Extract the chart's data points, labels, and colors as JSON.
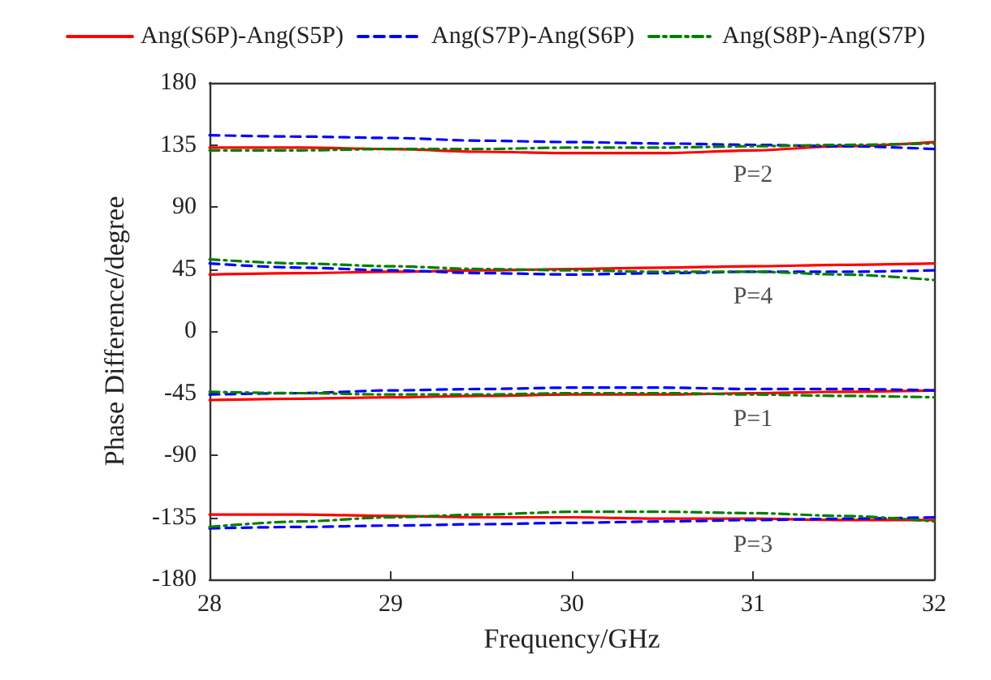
{
  "chart_data": {
    "type": "line",
    "xlabel": "Frequency/GHz",
    "ylabel": "Phase Difference/degree",
    "x": [
      28,
      28.5,
      29,
      29.5,
      30,
      30.5,
      31,
      31.5,
      32
    ],
    "xlim": [
      28,
      32
    ],
    "xticks": [
      28,
      29,
      30,
      31,
      32
    ],
    "ylim": [
      -180,
      180
    ],
    "yticks": [
      -180,
      -135,
      -90,
      -45,
      0,
      45,
      90,
      135,
      180
    ],
    "grid": false,
    "legend": "top",
    "marker": "none",
    "series": [
      {
        "name": "Ang(S6P)-Ang(S5P)",
        "color": "#ff0000",
        "line_style": "solid",
        "values": [
          133,
          133,
          132,
          130,
          129,
          129,
          131,
          134,
          137
        ]
      },
      {
        "name": "Ang(S7P)-Ang(S6P)",
        "color": "#0000ff",
        "line_style": "dashed",
        "values": [
          142,
          141,
          140,
          138,
          137,
          136,
          135,
          134,
          132
        ]
      },
      {
        "name": "Ang(S8P)-Ang(S7P)",
        "color": "#008000",
        "line_style": "dotted",
        "values": [
          131,
          131,
          132,
          132,
          133,
          133,
          134,
          135,
          136
        ]
      },
      {
        "color": "#ff0000",
        "line_style": "solid",
        "values": [
          41,
          42,
          43,
          44,
          45,
          46,
          47,
          48,
          49
        ]
      },
      {
        "color": "#0000ff",
        "line_style": "dashed",
        "values": [
          49,
          46,
          44,
          42,
          41,
          42,
          43,
          43,
          44
        ]
      },
      {
        "color": "#008000",
        "line_style": "dotted",
        "values": [
          52,
          49,
          47,
          45,
          44,
          43,
          43,
          41,
          37
        ]
      },
      {
        "color": "#ff0000",
        "line_style": "solid",
        "values": [
          -50,
          -49,
          -48,
          -47,
          -46,
          -46,
          -45,
          -44,
          -43
        ]
      },
      {
        "color": "#0000ff",
        "line_style": "dashed",
        "values": [
          -46,
          -45,
          -43,
          -42,
          -41,
          -41,
          -42,
          -42,
          -43
        ]
      },
      {
        "color": "#008000",
        "line_style": "dotted",
        "values": [
          -44,
          -45,
          -46,
          -46,
          -45,
          -45,
          -46,
          -47,
          -48
        ]
      },
      {
        "color": "#ff0000",
        "line_style": "solid",
        "values": [
          -133,
          -133,
          -134,
          -135,
          -135,
          -136,
          -136,
          -137,
          -137
        ]
      },
      {
        "color": "#0000ff",
        "line_style": "dashed",
        "values": [
          -143,
          -142,
          -141,
          -140,
          -139,
          -138,
          -137,
          -136,
          -135
        ]
      },
      {
        "color": "#008000",
        "line_style": "dotted",
        "values": [
          -142,
          -138,
          -135,
          -133,
          -131,
          -131,
          -132,
          -134,
          -138
        ]
      }
    ],
    "annotations": [
      "P=2",
      "P=4",
      "P=1",
      "P=3"
    ]
  }
}
